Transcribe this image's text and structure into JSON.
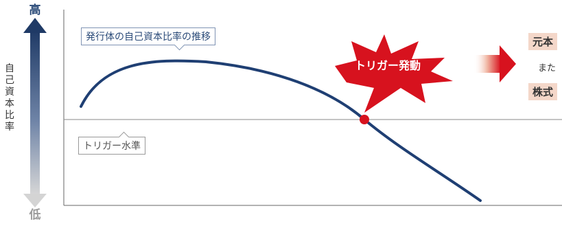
{
  "axis": {
    "high": "高",
    "low": "低",
    "label": "自\n己\n資\n本\n比\n率"
  },
  "labels": {
    "curve": "発行体の自己資本比率の推移",
    "trigger_level": "トリガー水準",
    "trigger_event": "トリガー発動"
  },
  "outcome": {
    "box1": "元本",
    "middle": "また",
    "box2": "株式"
  },
  "colors": {
    "curve": "#1f3f73",
    "arrow_top": "#1f3a66",
    "burst": "#d7121e",
    "outcome_box": "#f4d7c9"
  }
}
